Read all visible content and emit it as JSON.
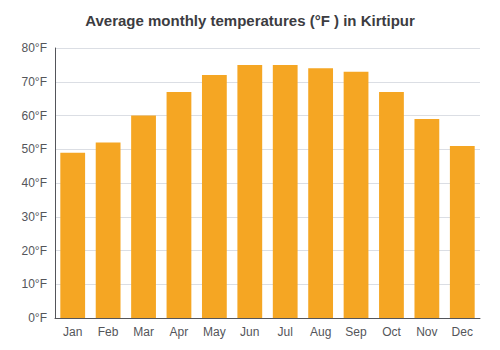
{
  "chart_data": {
    "type": "bar",
    "title": "Average monthly temperatures (°F ) in Kirtipur",
    "categories": [
      "Jan",
      "Feb",
      "Mar",
      "Apr",
      "May",
      "Jun",
      "Jul",
      "Aug",
      "Sep",
      "Oct",
      "Nov",
      "Dec"
    ],
    "values": [
      49,
      52,
      60,
      67,
      72,
      75,
      75,
      74,
      73,
      67,
      59,
      51
    ],
    "color": "#F5A623",
    "ylim": [
      0,
      80
    ],
    "yticks": [
      {
        "value": 0,
        "label": "0°F"
      },
      {
        "value": 10,
        "label": "10°F"
      },
      {
        "value": 20,
        "label": "20°F"
      },
      {
        "value": 30,
        "label": "30°F"
      },
      {
        "value": 40,
        "label": "40°F"
      },
      {
        "value": 50,
        "label": "50°F"
      },
      {
        "value": 60,
        "label": "60°F"
      },
      {
        "value": 70,
        "label": "70°F"
      },
      {
        "value": 80,
        "label": "80°F"
      }
    ],
    "grid": true
  }
}
